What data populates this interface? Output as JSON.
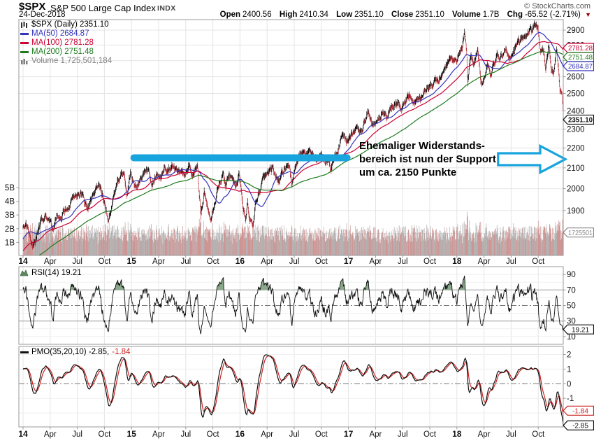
{
  "header": {
    "symbol": "$SPX",
    "title": "S&P 500 Large Cap Index",
    "exchange": "INDX",
    "copyright": "© StockCharts.com",
    "date": "24-Dec-2018",
    "quote": {
      "open_label": "Open",
      "open": "2400.56",
      "high_label": "High",
      "high": "2410.34",
      "low_label": "Low",
      "low": "2351.10",
      "close_label": "Close",
      "close": "2351.10",
      "volume_label": "Volume",
      "volume": "1.7B",
      "chg_label": "Chg",
      "chg": "-65.52 (-2.71%)",
      "chg_direction_icon": "down-triangle-icon"
    }
  },
  "main_chart": {
    "legend": {
      "series": "$SPX (Daily) 2351.10",
      "ma50": "MA(50) 2684.87",
      "ma100": "MA(100) 2781.28",
      "ma200": "MA(200) 2751.48",
      "volume": "Volume 1,725,501,184"
    },
    "icons": {
      "series": "ohlc-bars-icon",
      "ma": "line-swatch-icon",
      "volume": "volume-bars-icon"
    }
  },
  "rsi_panel": {
    "legend": "RSI(14) 19.21",
    "icon": "area-mountain-icon"
  },
  "pmo_panel": {
    "legend_main": "PMO(35,20,10) -2.85,",
    "legend_signal": "-1.84",
    "icon": "line-swatch-icon"
  },
  "annotation": {
    "lines": [
      "Ehemaliger Widerstands-",
      "bereich ist nun der Support",
      "um ca. 2150 Punkte"
    ]
  },
  "chart_data": {
    "type": "line",
    "title": "$SPX S&P 500 Large Cap Index, daily 2014-2018, with MA(50), MA(100), MA(200), volume overlay, RSI(14) and PMO(35,20,10) panels",
    "x_axis_labels": [
      "14",
      "Apr",
      "Jul",
      "Oct",
      "15",
      "Apr",
      "Jul",
      "Oct",
      "16",
      "Apr",
      "Jul",
      "Oct",
      "17",
      "Apr",
      "Jul",
      "Oct",
      "18",
      "Apr",
      "Jul",
      "Oct"
    ],
    "price_axis_log": true,
    "price_ticks": [
      1800,
      1900,
      2000,
      2100,
      2200,
      2300,
      2400,
      2500,
      2600,
      2700,
      2800,
      2900
    ],
    "price_ylim": [
      1711,
      2972
    ],
    "volume_ticks_billions": [
      1,
      2,
      3,
      4,
      5
    ],
    "rsi_ticks": [
      90,
      70,
      50,
      30,
      10
    ],
    "rsi_thresholds": {
      "overbought": 70,
      "midline": 50,
      "oversold": 30
    },
    "rsi_ylim": [
      0,
      100
    ],
    "pmo_ticks": [
      2,
      1,
      0,
      -1
    ],
    "pmo_ylim": [
      -2.95,
      2.55
    ],
    "last": {
      "close": 2351.1,
      "ma50": 2684.87,
      "ma100": 2781.28,
      "ma200": 2751.48,
      "volume": 1725501184,
      "rsi": 19.21,
      "pmo": -2.85,
      "pmo_signal": -1.84
    },
    "price_badges": [
      {
        "text": "2781.28",
        "value": 2781.28,
        "scale": "price",
        "color_key": "ma100"
      },
      {
        "text": "2751.48",
        "value": 2751.48,
        "scale": "price",
        "color_key": "ma200"
      },
      {
        "text": "2684.87",
        "value": 2684.87,
        "scale": "price",
        "color_key": "ma50"
      },
      {
        "text": "2351.10",
        "value": 2351.1,
        "scale": "price",
        "color_key": "price_up",
        "bold": true
      },
      {
        "text": "1725501",
        "value": 1.7255,
        "scale": "volume",
        "color_key": "volume_badge"
      }
    ],
    "rsi_badges": [
      {
        "text": "19.21",
        "value": 19.21,
        "color_key": "price_up"
      }
    ],
    "pmo_badges": [
      {
        "text": "-1.84",
        "value": -1.84,
        "color_key": "pmo_signal"
      },
      {
        "text": "-2.85",
        "value": -2.85,
        "color_key": "pmo_line"
      }
    ],
    "annotations": {
      "support_bar": {
        "t1": 2014.99,
        "t2": 2017.02,
        "price": 2150
      },
      "arrow": {
        "t1": 2018.38,
        "t2": 2019.0,
        "price": 2143
      }
    },
    "colors": {
      "price_up": "#111111",
      "price_down": "#B5303A",
      "ma50": "#3333BB",
      "ma100": "#CC0033",
      "ma200": "#1E7B1E",
      "volume_up": "#ABABAB",
      "volume_down": "#C98A8A",
      "volume_text": "#808080",
      "volume_badge": "#888888",
      "rsi_line": "#111111",
      "rsi_fill": "#8AA98A",
      "rsi_icon": "#5E8A5E",
      "pmo_line": "#111111",
      "pmo_signal": "#CC2222",
      "annotation": "#18A4DC",
      "grid": "#E4E4E4",
      "panel_border": "#999999",
      "chg_down": "#990000"
    },
    "price_keypoints": [
      [
        2013.0,
        1462
      ],
      [
        2013.08,
        1498
      ],
      [
        2013.16,
        1514
      ],
      [
        2013.21,
        1556
      ],
      [
        2013.29,
        1563
      ],
      [
        2013.35,
        1597
      ],
      [
        2013.42,
        1631
      ],
      [
        2013.47,
        1573
      ],
      [
        2013.54,
        1632
      ],
      [
        2013.58,
        1685
      ],
      [
        2013.63,
        1646
      ],
      [
        2013.7,
        1703
      ],
      [
        2013.74,
        1725
      ],
      [
        2013.79,
        1656
      ],
      [
        2013.83,
        1744
      ],
      [
        2013.88,
        1771
      ],
      [
        2013.92,
        1805
      ],
      [
        2013.96,
        1775
      ],
      [
        2014.0,
        1832
      ],
      [
        2014.03,
        1838
      ],
      [
        2014.06,
        1794
      ],
      [
        2014.09,
        1742
      ],
      [
        2014.13,
        1797
      ],
      [
        2014.17,
        1859
      ],
      [
        2014.22,
        1878
      ],
      [
        2014.25,
        1857
      ],
      [
        2014.28,
        1815
      ],
      [
        2014.31,
        1864
      ],
      [
        2014.35,
        1884
      ],
      [
        2014.38,
        1900
      ],
      [
        2014.42,
        1924
      ],
      [
        2014.45,
        1950
      ],
      [
        2014.49,
        1963
      ],
      [
        2014.53,
        1985
      ],
      [
        2014.57,
        1931
      ],
      [
        2014.6,
        1909
      ],
      [
        2014.64,
        1955
      ],
      [
        2014.67,
        1997
      ],
      [
        2014.71,
        2011
      ],
      [
        2014.74,
        1966
      ],
      [
        2014.76,
        1935
      ],
      [
        2014.79,
        1862
      ],
      [
        2014.83,
        1950
      ],
      [
        2014.87,
        2032
      ],
      [
        2014.9,
        2068
      ],
      [
        2014.93,
        2075
      ],
      [
        2014.96,
        1973
      ],
      [
        2014.99,
        2081
      ],
      [
        2015.02,
        2020
      ],
      [
        2015.05,
        1993
      ],
      [
        2015.09,
        2046
      ],
      [
        2015.13,
        2097
      ],
      [
        2015.16,
        2110
      ],
      [
        2015.19,
        2040
      ],
      [
        2015.23,
        2081
      ],
      [
        2015.27,
        2061
      ],
      [
        2015.3,
        2108
      ],
      [
        2015.34,
        2085
      ],
      [
        2015.38,
        2131
      ],
      [
        2015.42,
        2080
      ],
      [
        2015.46,
        2109
      ],
      [
        2015.49,
        2077
      ],
      [
        2015.53,
        2124
      ],
      [
        2015.57,
        2068
      ],
      [
        2015.61,
        2102
      ],
      [
        2015.64,
        1868
      ],
      [
        2015.67,
        1989
      ],
      [
        2015.7,
        1914
      ],
      [
        2015.73,
        1882
      ],
      [
        2015.77,
        1952
      ],
      [
        2015.8,
        2018
      ],
      [
        2015.84,
        2079
      ],
      [
        2015.87,
        2023
      ],
      [
        2015.9,
        2086
      ],
      [
        2015.93,
        2052
      ],
      [
        2015.96,
        2005
      ],
      [
        2015.99,
        2078
      ],
      [
        2016.01,
        2012
      ],
      [
        2016.03,
        1922
      ],
      [
        2016.05,
        1859
      ],
      [
        2016.07,
        1940
      ],
      [
        2016.09,
        1853
      ],
      [
        2016.12,
        1829
      ],
      [
        2016.14,
        1918
      ],
      [
        2016.17,
        1978
      ],
      [
        2016.2,
        2022
      ],
      [
        2016.23,
        2050
      ],
      [
        2016.27,
        2066
      ],
      [
        2016.3,
        2091
      ],
      [
        2016.33,
        2066
      ],
      [
        2016.36,
        2047
      ],
      [
        2016.4,
        2076
      ],
      [
        2016.43,
        2119
      ],
      [
        2016.46,
        2071
      ],
      [
        2016.48,
        2001
      ],
      [
        2016.51,
        2099
      ],
      [
        2016.54,
        2152
      ],
      [
        2016.57,
        2166
      ],
      [
        2016.61,
        2184
      ],
      [
        2016.65,
        2175
      ],
      [
        2016.69,
        2139
      ],
      [
        2016.72,
        2168
      ],
      [
        2016.75,
        2151
      ],
      [
        2016.79,
        2133
      ],
      [
        2016.82,
        2126
      ],
      [
        2016.84,
        2085
      ],
      [
        2016.87,
        2164
      ],
      [
        2016.9,
        2198
      ],
      [
        2016.93,
        2241
      ],
      [
        2016.95,
        2260
      ],
      [
        2016.98,
        2239
      ],
      [
        2017.01,
        2258
      ],
      [
        2017.04,
        2268
      ],
      [
        2017.07,
        2298
      ],
      [
        2017.1,
        2280
      ],
      [
        2017.13,
        2316
      ],
      [
        2017.16,
        2365
      ],
      [
        2017.18,
        2396
      ],
      [
        2017.22,
        2344
      ],
      [
        2017.26,
        2359
      ],
      [
        2017.29,
        2384
      ],
      [
        2017.33,
        2389
      ],
      [
        2017.36,
        2357
      ],
      [
        2017.4,
        2416
      ],
      [
        2017.43,
        2430
      ],
      [
        2017.46,
        2453
      ],
      [
        2017.49,
        2423
      ],
      [
        2017.53,
        2460
      ],
      [
        2017.56,
        2478
      ],
      [
        2017.6,
        2438
      ],
      [
        2017.63,
        2452
      ],
      [
        2017.66,
        2471
      ],
      [
        2017.7,
        2500
      ],
      [
        2017.73,
        2519
      ],
      [
        2017.76,
        2557
      ],
      [
        2017.8,
        2572
      ],
      [
        2017.83,
        2579
      ],
      [
        2017.86,
        2599
      ],
      [
        2017.9,
        2648
      ],
      [
        2017.93,
        2690
      ],
      [
        2017.96,
        2674
      ],
      [
        2018.0,
        2696
      ],
      [
        2018.03,
        2748
      ],
      [
        2018.05,
        2786
      ],
      [
        2018.07,
        2873
      ],
      [
        2018.09,
        2762
      ],
      [
        2018.1,
        2581
      ],
      [
        2018.13,
        2732
      ],
      [
        2018.16,
        2677
      ],
      [
        2018.19,
        2787
      ],
      [
        2018.22,
        2588
      ],
      [
        2018.25,
        2582
      ],
      [
        2018.28,
        2663
      ],
      [
        2018.31,
        2635
      ],
      [
        2018.34,
        2670
      ],
      [
        2018.37,
        2728
      ],
      [
        2018.4,
        2705
      ],
      [
        2018.44,
        2782
      ],
      [
        2018.46,
        2787
      ],
      [
        2018.49,
        2718
      ],
      [
        2018.52,
        2760
      ],
      [
        2018.56,
        2798
      ],
      [
        2018.59,
        2833
      ],
      [
        2018.62,
        2858
      ],
      [
        2018.65,
        2914
      ],
      [
        2018.69,
        2897
      ],
      [
        2018.72,
        2930
      ],
      [
        2018.75,
        2914
      ],
      [
        2018.77,
        2785
      ],
      [
        2018.8,
        2768
      ],
      [
        2018.82,
        2641
      ],
      [
        2018.85,
        2814
      ],
      [
        2018.87,
        2633
      ],
      [
        2018.89,
        2632
      ],
      [
        2018.92,
        2790
      ],
      [
        2018.94,
        2633
      ],
      [
        2018.95,
        2506
      ],
      [
        2018.97,
        2467
      ],
      [
        2018.985,
        2351.1
      ]
    ]
  }
}
